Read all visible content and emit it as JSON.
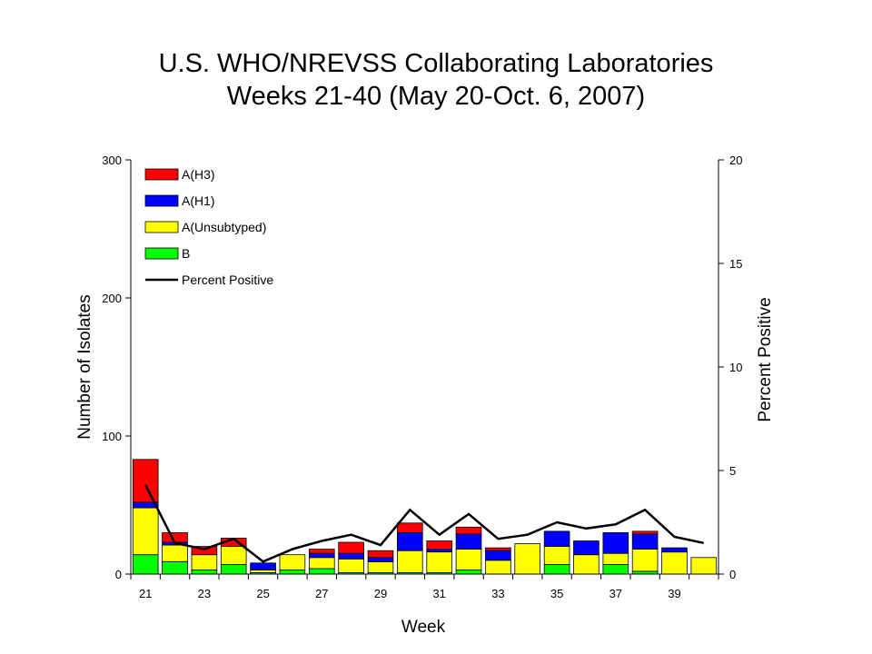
{
  "chart_data": {
    "type": "bar",
    "title": "U.S. WHO/NREVSS Collaborating Laboratories",
    "subtitle": "Weeks 21-40 (May 20-Oct. 6, 2007)",
    "xlabel": "Week",
    "ylabel": "Number of Isolates",
    "y2label": "Percent Positive",
    "stacked": true,
    "ylim": [
      0,
      300
    ],
    "y2lim": [
      0,
      20
    ],
    "yticks": [
      "0",
      "100",
      "200",
      "300"
    ],
    "y2ticks": [
      "0",
      "5",
      "10",
      "15",
      "20"
    ],
    "categories": [
      21,
      22,
      23,
      24,
      25,
      26,
      27,
      28,
      29,
      30,
      31,
      32,
      33,
      34,
      35,
      36,
      37,
      38,
      39,
      40
    ],
    "xtick_labels": [
      "21",
      "23",
      "25",
      "27",
      "29",
      "31",
      "33",
      "35",
      "37",
      "39"
    ],
    "series": [
      {
        "name": "B",
        "color": "#00ff00",
        "values": [
          14,
          9,
          3,
          7,
          1,
          3,
          4,
          1,
          1,
          1,
          1,
          3,
          0,
          0,
          7,
          0,
          7,
          2,
          0,
          0
        ]
      },
      {
        "name": "A(Unsubtyped)",
        "color": "#ffff00",
        "values": [
          34,
          12,
          11,
          13,
          2,
          11,
          8,
          10,
          8,
          16,
          15,
          15,
          10,
          22,
          13,
          14,
          8,
          16,
          16,
          12
        ]
      },
      {
        "name": "A(H1)",
        "color": "#0000ff",
        "values": [
          4,
          2,
          0,
          0,
          5,
          0,
          3,
          4,
          3,
          13,
          2,
          11,
          7,
          0,
          11,
          10,
          15,
          11,
          3,
          0
        ]
      },
      {
        "name": "A(H3)",
        "color": "#ff0000",
        "values": [
          31,
          7,
          6,
          6,
          0,
          0,
          3,
          8,
          5,
          7,
          6,
          5,
          2,
          0,
          0,
          0,
          0,
          2,
          0,
          0
        ]
      }
    ],
    "line_series": {
      "name": "Percent Positive",
      "color": "#000000",
      "values": [
        4.3,
        1.5,
        1.2,
        1.7,
        0.6,
        1.2,
        1.6,
        1.9,
        1.4,
        3.1,
        1.9,
        2.9,
        1.7,
        1.9,
        2.5,
        2.2,
        2.4,
        3.1,
        1.8,
        1.5
      ]
    },
    "legend": {
      "position": "top-left",
      "order": [
        "A(H3)",
        "A(H1)",
        "A(Unsubtyped)",
        "B",
        "Percent Positive"
      ]
    }
  }
}
